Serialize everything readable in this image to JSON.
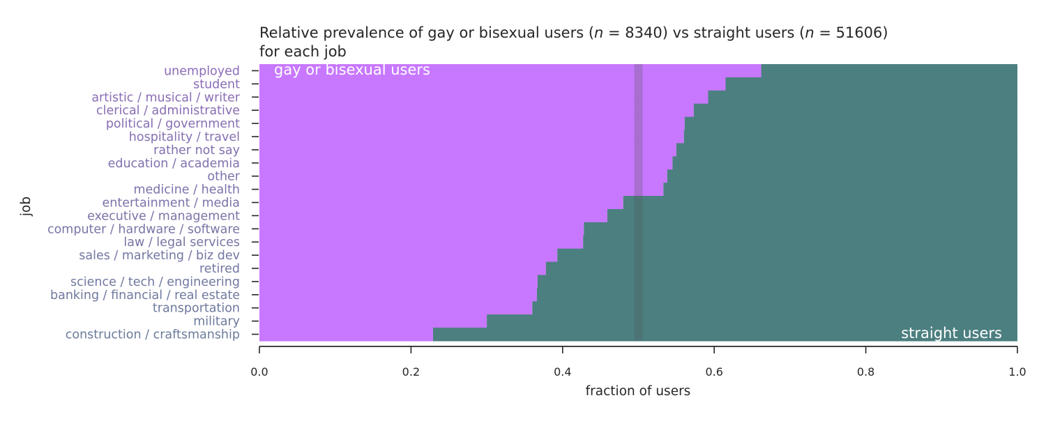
{
  "chart_data": {
    "type": "bar",
    "orientation": "horizontal",
    "stacked": true,
    "title": {
      "prefix": "Relative prevalence of gay or bisexual users (",
      "n_symbol": "n",
      "n1_text": " = 8340) vs straight users (",
      "n2_text": " = 51606)",
      "line2": "for each job"
    },
    "xlabel": "fraction of users",
    "ylabel": "job",
    "xlim": [
      0.0,
      1.0
    ],
    "xticks": [
      "0.0",
      "0.2",
      "0.4",
      "0.6",
      "0.8",
      "1.0"
    ],
    "reference_line": 0.5,
    "categories": [
      "unemployed",
      "student",
      "artistic / musical / writer",
      "clerical / administrative",
      "political / government",
      "hospitality / travel",
      "rather not say",
      "education / academia",
      "other",
      "medicine / health",
      "entertainment / media",
      "executive / management",
      "computer / hardware / software",
      "law / legal services",
      "sales / marketing / biz dev",
      "retired",
      "science / tech / engineering",
      "banking / financial / real estate",
      "transportation",
      "military",
      "construction / craftsmanship"
    ],
    "series": [
      {
        "name": "gay or bisexual users",
        "color": "#c878ff",
        "values": [
          0.662,
          0.615,
          0.592,
          0.573,
          0.561,
          0.56,
          0.55,
          0.545,
          0.538,
          0.533,
          0.48,
          0.459,
          0.428,
          0.427,
          0.393,
          0.378,
          0.367,
          0.366,
          0.36,
          0.3,
          0.229
        ]
      },
      {
        "name": "straight users",
        "color": "#4c7f80",
        "values": [
          0.338,
          0.385,
          0.408,
          0.427,
          0.439,
          0.44,
          0.45,
          0.455,
          0.462,
          0.467,
          0.52,
          0.541,
          0.572,
          0.573,
          0.607,
          0.622,
          0.633,
          0.634,
          0.64,
          0.7,
          0.771
        ]
      }
    ],
    "label_colors": {
      "top": "#8c6bb8",
      "bottom": "#6a7b9a"
    },
    "grid": false,
    "legend": "none (inline labels: top-left and bottom-right)"
  }
}
